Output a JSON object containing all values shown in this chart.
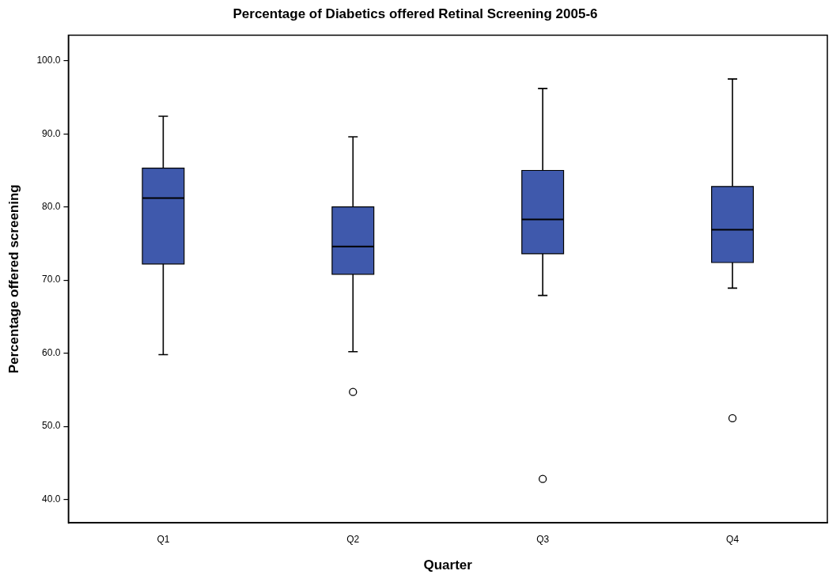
{
  "chart_data": {
    "type": "box",
    "title": "Percentage of Diabetics offered Retinal Screening 2005-6",
    "xlabel": "Quarter",
    "ylabel": "Percentage offered screening",
    "categories": [
      "Q1",
      "Q2",
      "Q3",
      "Q4"
    ],
    "color": "#3f59ac",
    "boxes": [
      {
        "low": 59.8,
        "q1": 72.2,
        "median": 81.2,
        "q3": 85.3,
        "high": 92.4
      },
      {
        "low": 60.2,
        "q1": 70.8,
        "median": 74.6,
        "q3": 80.0,
        "high": 89.6,
        "outliers": [
          54.7
        ]
      },
      {
        "low": 67.9,
        "q1": 73.6,
        "median": 78.3,
        "q3": 85.0,
        "high": 96.2,
        "outliers": [
          42.8
        ]
      },
      {
        "low": 68.9,
        "q1": 72.4,
        "median": 76.9,
        "q3": 82.8,
        "high": 97.5,
        "outliers": [
          51.1
        ]
      }
    ],
    "ylim": [
      36.8,
      103.5
    ],
    "yticks": [
      {
        "value": 40,
        "label": "40.0"
      },
      {
        "value": 50,
        "label": "50.0"
      },
      {
        "value": 60,
        "label": "60.0"
      },
      {
        "value": 70,
        "label": "70.0"
      },
      {
        "value": 80,
        "label": "80.0"
      },
      {
        "value": 90,
        "label": "90.0"
      },
      {
        "value": 100,
        "label": "100.0"
      }
    ],
    "grid": false,
    "legend": false
  }
}
